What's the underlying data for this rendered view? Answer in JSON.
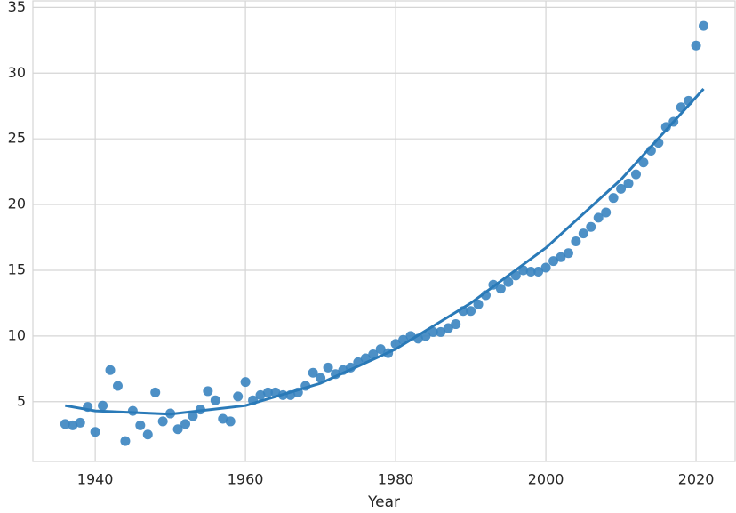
{
  "chart_data": {
    "type": "scatter",
    "xlabel": "Year",
    "x": [
      1936,
      1937,
      1938,
      1939,
      1940,
      1941,
      1942,
      1943,
      1944,
      1945,
      1946,
      1947,
      1948,
      1949,
      1950,
      1951,
      1952,
      1953,
      1954,
      1955,
      1956,
      1957,
      1958,
      1959,
      1960,
      1961,
      1962,
      1963,
      1964,
      1965,
      1966,
      1967,
      1968,
      1969,
      1970,
      1971,
      1972,
      1973,
      1974,
      1975,
      1976,
      1977,
      1978,
      1979,
      1980,
      1981,
      1982,
      1983,
      1984,
      1985,
      1986,
      1987,
      1988,
      1989,
      1990,
      1991,
      1992,
      1993,
      1994,
      1995,
      1996,
      1997,
      1998,
      1999,
      2000,
      2001,
      2002,
      2003,
      2004,
      2005,
      2006,
      2007,
      2008,
      2009,
      2010,
      2011,
      2012,
      2013,
      2014,
      2015,
      2016,
      2017,
      2018,
      2019,
      2020,
      2021
    ],
    "series": [
      {
        "color": "#3a84c0",
        "values": [
          3.3,
          3.2,
          3.4,
          4.6,
          2.7,
          4.7,
          7.4,
          6.2,
          2.0,
          4.3,
          3.2,
          2.5,
          5.7,
          3.5,
          4.1,
          2.9,
          3.3,
          3.9,
          4.4,
          5.8,
          5.1,
          3.7,
          3.5,
          5.4,
          6.5,
          5.1,
          5.5,
          5.7,
          5.7,
          5.5,
          5.5,
          5.7,
          6.2,
          7.2,
          6.8,
          7.6,
          7.1,
          7.4,
          7.6,
          8.0,
          8.3,
          8.6,
          9.0,
          8.7,
          9.4,
          9.7,
          10.0,
          9.8,
          10.0,
          10.3,
          10.3,
          10.6,
          10.9,
          11.9,
          11.9,
          12.4,
          13.1,
          13.9,
          13.6,
          14.1,
          14.6,
          15.0,
          14.9,
          14.9,
          15.2,
          15.7,
          16.0,
          16.3,
          17.2,
          17.8,
          18.3,
          19.0,
          19.4,
          20.5,
          21.2,
          21.6,
          22.3,
          23.2,
          24.1,
          24.7,
          25.9,
          26.3,
          27.4,
          27.9,
          32.1,
          33.6
        ]
      }
    ],
    "fit": {
      "color": "#2a7ab8",
      "x": [
        1936,
        1940,
        1950,
        1960,
        1970,
        1980,
        1990,
        2000,
        2010,
        2021
      ],
      "values": [
        4.7,
        4.3,
        4.05,
        4.7,
        6.4,
        9.0,
        12.5,
        16.7,
        21.9,
        28.8
      ]
    },
    "xlim": [
      1931.7,
      2025.2
    ],
    "ylim": [
      0.45,
      35.5
    ],
    "xticks": [
      1940,
      1960,
      1980,
      2000,
      2020
    ],
    "yticks": [
      5,
      10,
      15,
      20,
      25,
      30,
      35
    ],
    "grid": true
  }
}
